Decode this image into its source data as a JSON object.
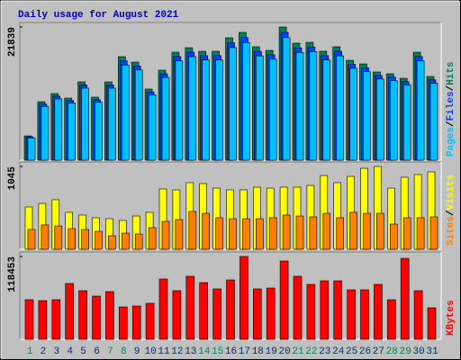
{
  "chart_data": [
    {
      "type": "bar",
      "title": "Daily usage for August 2021",
      "ylim": [
        0,
        21839
      ],
      "yticks": [
        21839
      ],
      "legend_separator": "/",
      "series": [
        {
          "name": "Hits",
          "color": "#00805c",
          "values": [
            3984,
            9591,
            10920,
            10182,
            12838,
            10329,
            12838,
            16969,
            16084,
            11657,
            14756,
            17707,
            18445,
            17855,
            17855,
            20068,
            20954,
            18593,
            18002,
            21839,
            19183,
            19330,
            17855,
            18593,
            16379,
            15789,
            14461,
            14166,
            13428,
            17707,
            13723
          ]
        },
        {
          "name": "Files",
          "color": "#0040ff",
          "values": [
            3825,
            9207,
            10483,
            9775,
            12324,
            9916,
            12324,
            16290,
            15441,
            11191,
            14166,
            16999,
            17707,
            17141,
            17141,
            19265,
            20116,
            17849,
            17282,
            20965,
            18416,
            18557,
            17141,
            17849,
            15724,
            15157,
            13883,
            13599,
            12891,
            16999,
            13174
          ]
        },
        {
          "name": "Pages",
          "color": "#00c0ff",
          "values": [
            3665,
            8824,
            10046,
            9367,
            11811,
            9503,
            11811,
            15611,
            14797,
            10724,
            13576,
            16290,
            16969,
            16427,
            16427,
            18463,
            19278,
            17106,
            16562,
            20092,
            17648,
            17784,
            16427,
            17106,
            15069,
            14526,
            13304,
            13033,
            12354,
            16290,
            12625
          ]
        }
      ]
    },
    {
      "type": "bar",
      "ylim": [
        0,
        1045
      ],
      "yticks": [
        1045
      ],
      "legend_separator": "/",
      "series": [
        {
          "name": "Visits",
          "color": "#ffff00",
          "values": [
            534,
            579,
            625,
            466,
            432,
            398,
            386,
            364,
            420,
            466,
            761,
            750,
            841,
            829,
            772,
            750,
            750,
            784,
            772,
            784,
            784,
            806,
            931,
            841,
            920,
            1022,
            1045,
            772,
            909,
            943,
            977
          ]
        },
        {
          "name": "Sites",
          "color": "#ff8000",
          "values": [
            250,
            307,
            295,
            261,
            250,
            227,
            170,
            204,
            193,
            273,
            352,
            375,
            477,
            454,
            398,
            386,
            386,
            386,
            398,
            432,
            420,
            409,
            454,
            398,
            466,
            454,
            454,
            318,
            398,
            398,
            409
          ]
        }
      ]
    },
    {
      "type": "bar",
      "ylim": [
        0,
        118453
      ],
      "yticks": [
        118453
      ],
      "categories": [
        "1",
        "2",
        "3",
        "4",
        "5",
        "6",
        "7",
        "8",
        "9",
        "10",
        "11",
        "12",
        "13",
        "14",
        "15",
        "16",
        "17",
        "18",
        "19",
        "20",
        "21",
        "22",
        "23",
        "24",
        "25",
        "26",
        "27",
        "28",
        "29",
        "30",
        "31"
      ],
      "category_colors": [
        "#008060",
        "#00305a",
        "#00305a",
        "#00305a",
        "#00305a",
        "#00305a",
        "#008060",
        "#008060",
        "#00305a",
        "#00305a",
        "#00305a",
        "#00305a",
        "#00305a",
        "#008060",
        "#008060",
        "#00305a",
        "#00305a",
        "#00305a",
        "#00305a",
        "#00305a",
        "#008060",
        "#008060",
        "#00305a",
        "#00305a",
        "#00305a",
        "#00305a",
        "#00305a",
        "#008060",
        "#008060",
        "#00305a",
        "#00305a"
      ],
      "series": [
        {
          "name": "KBytes",
          "color": "#ff0000",
          "values": [
            56650,
            55363,
            56650,
            79825,
            69525,
            61800,
            68238,
            46350,
            47638,
            51500,
            86263,
            69525,
            90125,
            81113,
            72100,
            84975,
            118453,
            72100,
            73388,
            112013,
            90125,
            78538,
            83688,
            83688,
            70813,
            70813,
            78538,
            56650,
            115875,
            69525,
            45063
          ]
        }
      ]
    }
  ]
}
